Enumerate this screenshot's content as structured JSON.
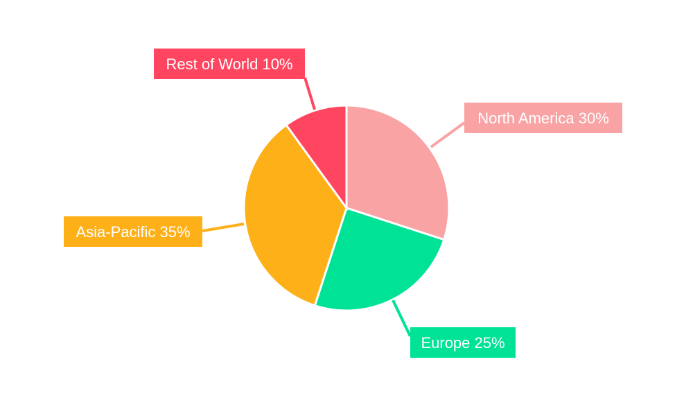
{
  "chart_data": {
    "type": "pie",
    "title": "",
    "start_angle": "top, clockwise",
    "slices": [
      {
        "label": "North America",
        "value": 30,
        "display": "North America 30%",
        "color": "#f9a3a4"
      },
      {
        "label": "Europe",
        "value": 25,
        "display": "Europe 25%",
        "color": "#00e396"
      },
      {
        "label": "Asia-Pacific",
        "value": 35,
        "display": "Asia-Pacific 35%",
        "color": "#feb019"
      },
      {
        "label": "Rest of World",
        "value": 10,
        "display": "Rest of World 10%",
        "color": "#ff4560"
      }
    ]
  }
}
